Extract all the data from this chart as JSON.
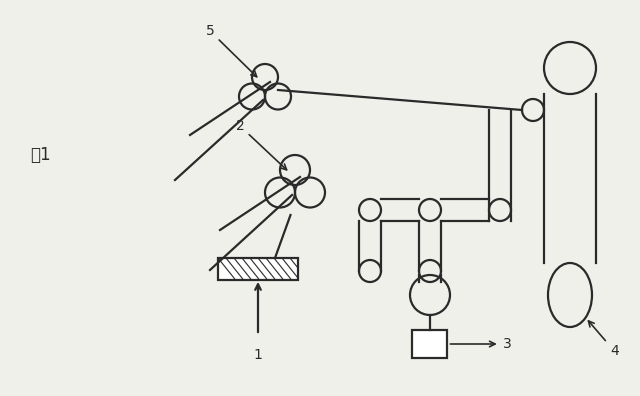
{
  "bg_color": "#f0f0eb",
  "line_color": "#2a2a2a",
  "lw": 1.6,
  "fig_label": "図1"
}
